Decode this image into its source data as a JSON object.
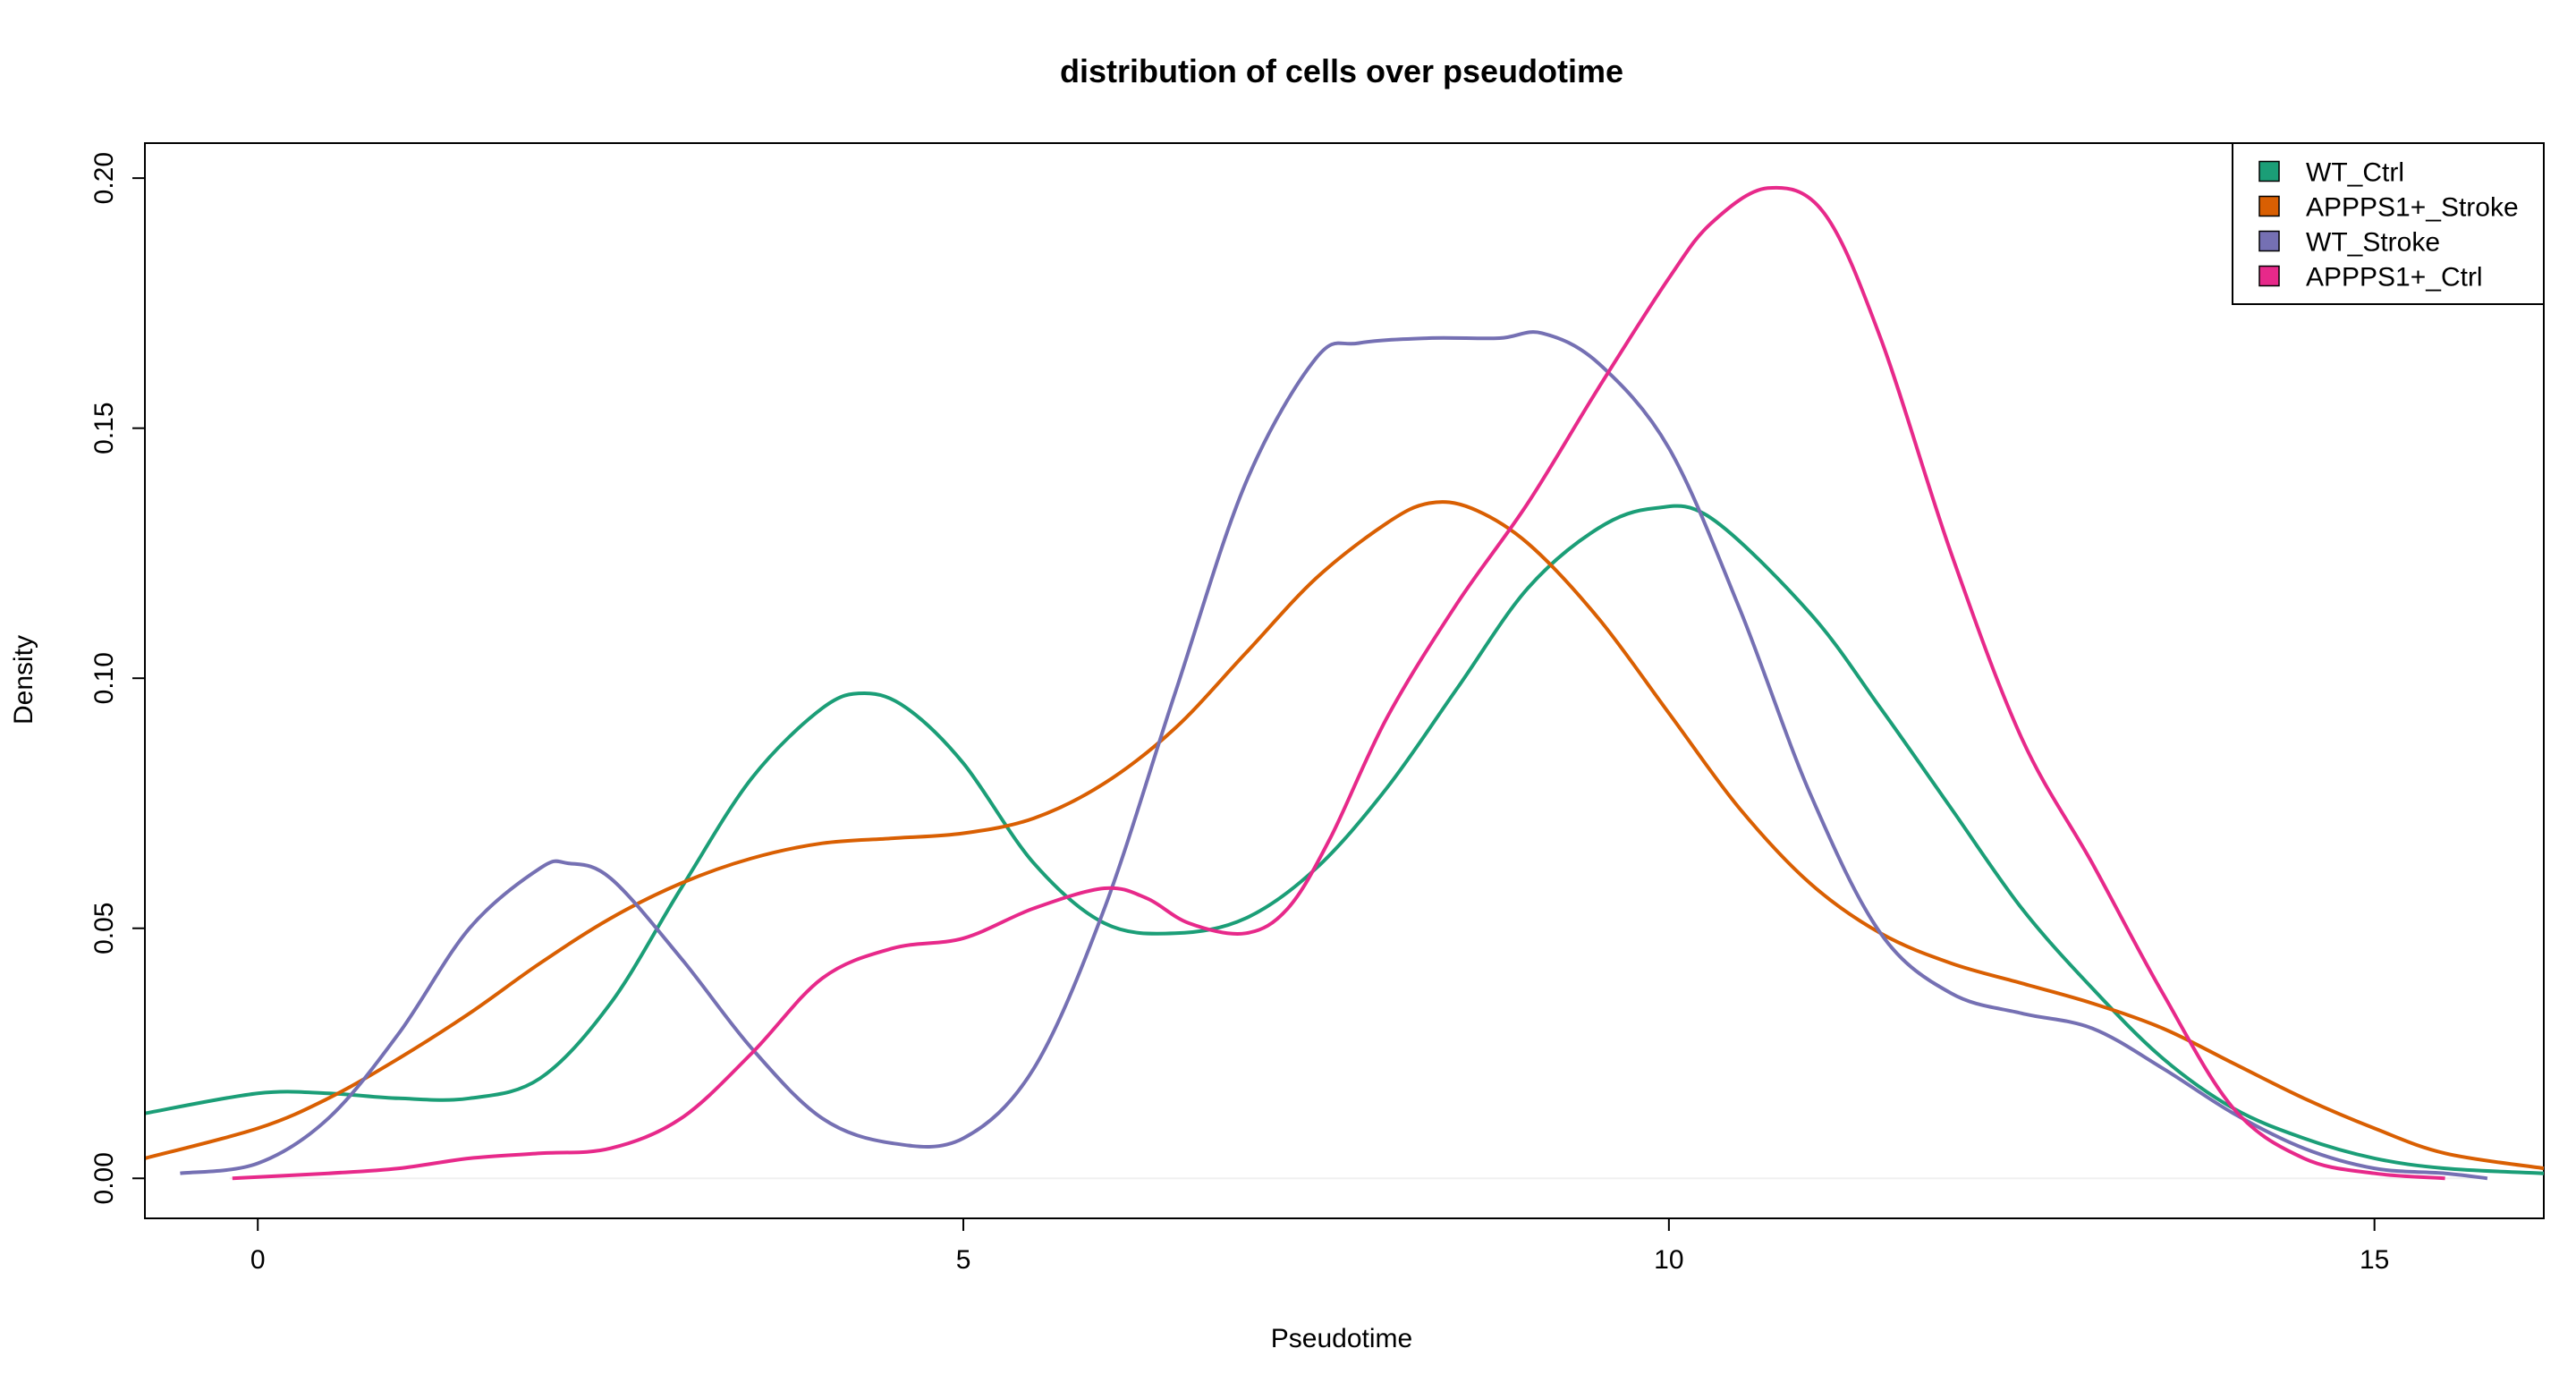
{
  "chart_data": {
    "type": "line",
    "title": "distribution of cells over pseudotime",
    "xlabel": "Pseudotime",
    "ylabel": "Density",
    "xlim": [
      -0.8,
      16.2
    ],
    "ylim": [
      -0.008,
      0.207
    ],
    "x_ticks": [
      0,
      5,
      10,
      15
    ],
    "x_tick_labels": [
      "0",
      "5",
      "10",
      "15"
    ],
    "y_ticks": [
      0.0,
      0.05,
      0.1,
      0.15,
      0.2
    ],
    "y_tick_labels": [
      "0.00",
      "0.05",
      "0.10",
      "0.15",
      "0.20"
    ],
    "grid": false,
    "legend_position": "top-right",
    "series": [
      {
        "name": "WT_Ctrl",
        "color": "#1b9e77",
        "x": [
          -0.8,
          0,
          0.5,
          1,
          1.5,
          2,
          2.5,
          3,
          3.5,
          4,
          4.3,
          4.6,
          5,
          5.5,
          6,
          6.5,
          7,
          7.5,
          8,
          8.5,
          9,
          9.5,
          9.9,
          10.3,
          11,
          11.5,
          12,
          12.5,
          13,
          13.5,
          14,
          14.5,
          15,
          15.5,
          16.2
        ],
        "y": [
          0.013,
          0.017,
          0.017,
          0.016,
          0.016,
          0.02,
          0.035,
          0.058,
          0.08,
          0.094,
          0.097,
          0.094,
          0.083,
          0.063,
          0.051,
          0.049,
          0.052,
          0.062,
          0.078,
          0.098,
          0.118,
          0.13,
          0.134,
          0.132,
          0.113,
          0.094,
          0.074,
          0.054,
          0.038,
          0.024,
          0.014,
          0.008,
          0.004,
          0.002,
          0.001
        ]
      },
      {
        "name": "APPPS1+_Stroke",
        "color": "#d95f02",
        "x": [
          -0.8,
          0,
          0.5,
          1,
          1.5,
          2,
          2.5,
          3,
          3.5,
          4,
          4.5,
          5,
          5.5,
          6,
          6.5,
          7,
          7.5,
          8,
          8.3,
          8.6,
          9,
          9.5,
          10,
          10.5,
          11,
          11.5,
          12,
          12.5,
          13,
          13.5,
          14,
          14.5,
          15,
          15.5,
          16.2
        ],
        "y": [
          0.004,
          0.01,
          0.016,
          0.024,
          0.033,
          0.043,
          0.052,
          0.059,
          0.064,
          0.067,
          0.068,
          0.069,
          0.072,
          0.079,
          0.09,
          0.105,
          0.12,
          0.131,
          0.135,
          0.134,
          0.127,
          0.112,
          0.093,
          0.074,
          0.059,
          0.049,
          0.043,
          0.039,
          0.035,
          0.03,
          0.023,
          0.016,
          0.01,
          0.005,
          0.002
        ]
      },
      {
        "name": "WT_Stroke",
        "color": "#7570b3",
        "x": [
          -0.55,
          0,
          0.5,
          1,
          1.5,
          2,
          2.2,
          2.5,
          3,
          3.5,
          4,
          4.5,
          5,
          5.5,
          6,
          6.5,
          7,
          7.5,
          7.8,
          8.3,
          8.8,
          9.1,
          9.5,
          10,
          10.5,
          11,
          11.5,
          12,
          12.5,
          13,
          13.5,
          14,
          14.5,
          15,
          15.5,
          15.8
        ],
        "y": [
          0.001,
          0.003,
          0.012,
          0.029,
          0.05,
          0.062,
          0.063,
          0.06,
          0.044,
          0.026,
          0.012,
          0.007,
          0.008,
          0.022,
          0.054,
          0.097,
          0.139,
          0.164,
          0.167,
          0.168,
          0.168,
          0.169,
          0.163,
          0.146,
          0.114,
          0.077,
          0.049,
          0.037,
          0.033,
          0.03,
          0.022,
          0.013,
          0.006,
          0.002,
          0.001,
          0.0
        ]
      },
      {
        "name": "APPPS1+_Ctrl",
        "color": "#e7298a",
        "x": [
          -0.18,
          0.5,
          1,
          1.5,
          2,
          2.5,
          3,
          3.5,
          4,
          4.5,
          5,
          5.5,
          6,
          6.3,
          6.6,
          7,
          7.3,
          7.6,
          8,
          8.5,
          9,
          9.5,
          10,
          10.3,
          10.7,
          11.1,
          11.5,
          12,
          12.5,
          13,
          13.5,
          14,
          14.5,
          15,
          15.5
        ],
        "y": [
          0.0,
          0.001,
          0.002,
          0.004,
          0.005,
          0.006,
          0.012,
          0.025,
          0.04,
          0.046,
          0.048,
          0.054,
          0.058,
          0.056,
          0.051,
          0.049,
          0.054,
          0.068,
          0.092,
          0.115,
          0.135,
          0.158,
          0.18,
          0.191,
          0.198,
          0.193,
          0.168,
          0.125,
          0.088,
          0.063,
          0.037,
          0.014,
          0.004,
          0.001,
          0.0
        ]
      }
    ]
  }
}
